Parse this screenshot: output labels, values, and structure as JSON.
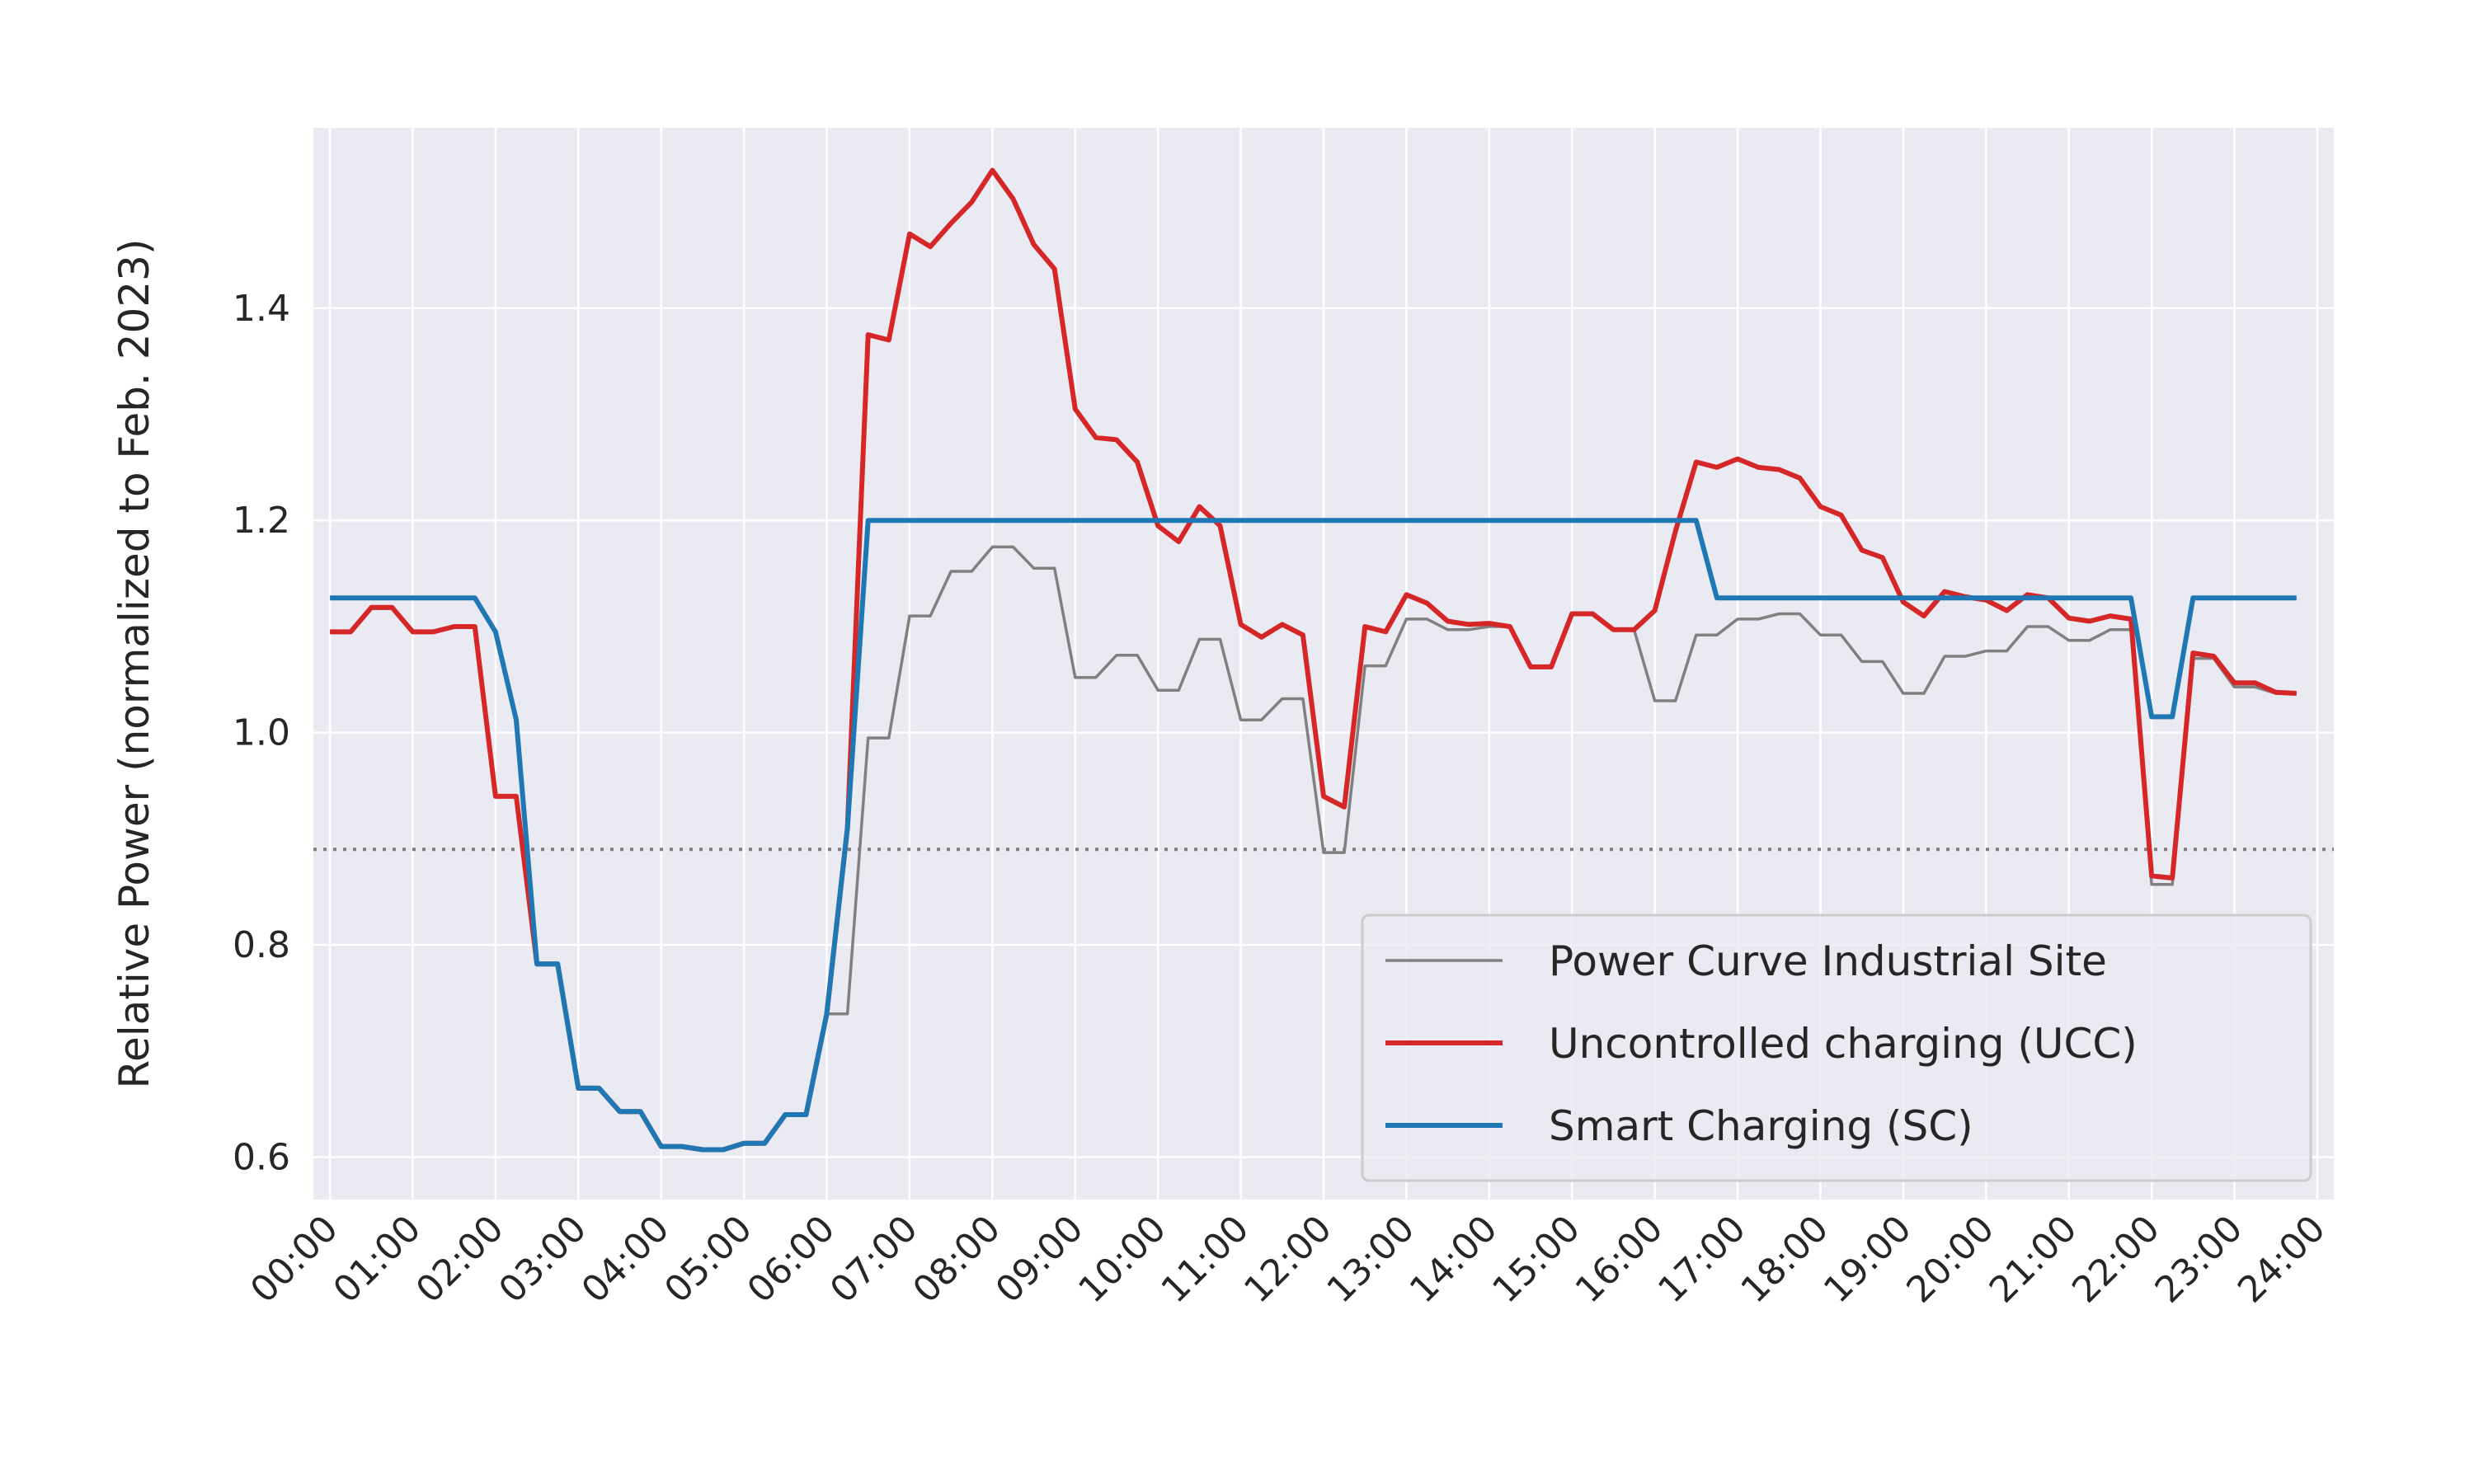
{
  "chart_data": {
    "type": "line",
    "xlabel": "",
    "ylabel": "Relative Power (normalized to Feb. 2023)",
    "x_ticks": [
      "00:00",
      "01:00",
      "02:00",
      "03:00",
      "04:00",
      "05:00",
      "06:00",
      "07:00",
      "08:00",
      "09:00",
      "10:00",
      "11:00",
      "12:00",
      "13:00",
      "14:00",
      "15:00",
      "16:00",
      "17:00",
      "18:00",
      "19:00",
      "20:00",
      "21:00",
      "22:00",
      "23:00",
      "24:00"
    ],
    "y_ticks": [
      "0.6",
      "0.8",
      "1.0",
      "1.2",
      "1.4"
    ],
    "xlim": [
      -0.2,
      24.2
    ],
    "ylim": [
      0.56,
      1.57
    ],
    "grid": true,
    "legend_position": "bottom-right",
    "reference_line": {
      "y": 0.89,
      "style": "dotted",
      "color": "#808080"
    },
    "series": [
      {
        "name": "Power Curve Industrial Site",
        "color": "#808080",
        "points": [
          [
            0,
            1.095
          ],
          [
            0.25,
            1.095
          ],
          [
            0.5,
            1.117
          ],
          [
            0.75,
            1.117
          ],
          [
            1,
            1.095
          ],
          [
            1.25,
            1.095
          ],
          [
            1.5,
            1.1
          ],
          [
            1.75,
            1.1
          ],
          [
            2,
            0.94
          ],
          [
            2.25,
            0.94
          ],
          [
            2.5,
            0.782
          ],
          [
            2.75,
            0.782
          ],
          [
            3,
            0.665
          ],
          [
            3.25,
            0.665
          ],
          [
            3.5,
            0.643
          ],
          [
            3.75,
            0.643
          ],
          [
            4,
            0.61
          ],
          [
            4.25,
            0.61
          ],
          [
            4.5,
            0.607
          ],
          [
            4.75,
            0.607
          ],
          [
            5,
            0.613
          ],
          [
            5.25,
            0.613
          ],
          [
            5.5,
            0.64
          ],
          [
            5.75,
            0.64
          ],
          [
            6,
            0.735
          ],
          [
            6.25,
            0.735
          ],
          [
            6.5,
            0.995
          ],
          [
            6.75,
            0.995
          ],
          [
            7,
            1.11
          ],
          [
            7.25,
            1.11
          ],
          [
            7.5,
            1.152
          ],
          [
            7.75,
            1.152
          ],
          [
            8,
            1.175
          ],
          [
            8.25,
            1.175
          ],
          [
            8.5,
            1.155
          ],
          [
            8.75,
            1.155
          ],
          [
            9,
            1.052
          ],
          [
            9.25,
            1.052
          ],
          [
            9.5,
            1.073
          ],
          [
            9.75,
            1.073
          ],
          [
            10,
            1.04
          ],
          [
            10.25,
            1.04
          ],
          [
            10.5,
            1.088
          ],
          [
            10.75,
            1.088
          ],
          [
            11,
            1.012
          ],
          [
            11.25,
            1.012
          ],
          [
            11.5,
            1.032
          ],
          [
            11.75,
            1.032
          ],
          [
            12,
            0.887
          ],
          [
            12.25,
            0.887
          ],
          [
            12.5,
            1.063
          ],
          [
            12.75,
            1.063
          ],
          [
            13,
            1.107
          ],
          [
            13.25,
            1.107
          ],
          [
            13.5,
            1.097
          ],
          [
            13.75,
            1.097
          ],
          [
            14,
            1.1
          ],
          [
            14.25,
            1.1
          ],
          [
            14.5,
            1.062
          ],
          [
            14.75,
            1.062
          ],
          [
            15,
            1.112
          ],
          [
            15.25,
            1.112
          ],
          [
            15.5,
            1.097
          ],
          [
            15.75,
            1.097
          ],
          [
            16,
            1.03
          ],
          [
            16.25,
            1.03
          ],
          [
            16.5,
            1.092
          ],
          [
            16.75,
            1.092
          ],
          [
            17,
            1.107
          ],
          [
            17.25,
            1.107
          ],
          [
            17.5,
            1.112
          ],
          [
            17.75,
            1.112
          ],
          [
            18,
            1.092
          ],
          [
            18.25,
            1.092
          ],
          [
            18.5,
            1.067
          ],
          [
            18.75,
            1.067
          ],
          [
            19,
            1.037
          ],
          [
            19.25,
            1.037
          ],
          [
            19.5,
            1.072
          ],
          [
            19.75,
            1.072
          ],
          [
            20,
            1.077
          ],
          [
            20.25,
            1.077
          ],
          [
            20.5,
            1.1
          ],
          [
            20.75,
            1.1
          ],
          [
            21,
            1.087
          ],
          [
            21.25,
            1.087
          ],
          [
            21.5,
            1.097
          ],
          [
            21.75,
            1.097
          ],
          [
            22,
            0.857
          ],
          [
            22.25,
            0.857
          ],
          [
            22.5,
            1.07
          ],
          [
            22.75,
            1.07
          ],
          [
            23,
            1.043
          ],
          [
            23.25,
            1.043
          ],
          [
            23.5,
            1.037
          ],
          [
            23.75,
            1.037
          ]
        ]
      },
      {
        "name": "Uncontrolled charging (UCC)",
        "color": "#d62728",
        "points": [
          [
            0,
            1.095
          ],
          [
            0.25,
            1.095
          ],
          [
            0.5,
            1.118
          ],
          [
            0.75,
            1.118
          ],
          [
            1,
            1.095
          ],
          [
            1.25,
            1.095
          ],
          [
            1.5,
            1.1
          ],
          [
            1.75,
            1.1
          ],
          [
            2,
            0.94
          ],
          [
            2.25,
            0.94
          ],
          [
            2.5,
            0.782
          ],
          [
            2.75,
            0.782
          ],
          [
            3,
            0.665
          ],
          [
            3.25,
            0.665
          ],
          [
            3.5,
            0.643
          ],
          [
            3.75,
            0.643
          ],
          [
            4,
            0.61
          ],
          [
            4.25,
            0.61
          ],
          [
            4.5,
            0.607
          ],
          [
            4.75,
            0.607
          ],
          [
            5,
            0.613
          ],
          [
            5.25,
            0.613
          ],
          [
            5.5,
            0.64
          ],
          [
            5.75,
            0.64
          ],
          [
            6,
            0.735
          ],
          [
            6.25,
            0.91
          ],
          [
            6.5,
            1.375
          ],
          [
            6.75,
            1.37
          ],
          [
            7,
            1.47
          ],
          [
            7.25,
            1.458
          ],
          [
            7.5,
            1.48
          ],
          [
            7.75,
            1.5
          ],
          [
            8,
            1.53
          ],
          [
            8.25,
            1.503
          ],
          [
            8.5,
            1.46
          ],
          [
            8.75,
            1.437
          ],
          [
            9,
            1.305
          ],
          [
            9.25,
            1.278
          ],
          [
            9.5,
            1.276
          ],
          [
            9.75,
            1.255
          ],
          [
            10,
            1.195
          ],
          [
            10.25,
            1.18
          ],
          [
            10.5,
            1.213
          ],
          [
            10.75,
            1.195
          ],
          [
            11,
            1.102
          ],
          [
            11.25,
            1.09
          ],
          [
            11.5,
            1.102
          ],
          [
            11.75,
            1.092
          ],
          [
            12,
            0.94
          ],
          [
            12.25,
            0.93
          ],
          [
            12.5,
            1.1
          ],
          [
            12.75,
            1.095
          ],
          [
            13,
            1.13
          ],
          [
            13.25,
            1.122
          ],
          [
            13.5,
            1.105
          ],
          [
            13.75,
            1.102
          ],
          [
            14,
            1.103
          ],
          [
            14.25,
            1.1
          ],
          [
            14.5,
            1.062
          ],
          [
            14.75,
            1.062
          ],
          [
            15,
            1.112
          ],
          [
            15.25,
            1.112
          ],
          [
            15.5,
            1.097
          ],
          [
            15.75,
            1.097
          ],
          [
            16,
            1.115
          ],
          [
            16.25,
            1.19
          ],
          [
            16.5,
            1.255
          ],
          [
            16.75,
            1.25
          ],
          [
            17,
            1.258
          ],
          [
            17.25,
            1.25
          ],
          [
            17.5,
            1.248
          ],
          [
            17.75,
            1.24
          ],
          [
            18,
            1.213
          ],
          [
            18.25,
            1.205
          ],
          [
            18.5,
            1.172
          ],
          [
            18.75,
            1.165
          ],
          [
            19,
            1.123
          ],
          [
            19.25,
            1.11
          ],
          [
            19.5,
            1.133
          ],
          [
            19.75,
            1.128
          ],
          [
            20,
            1.125
          ],
          [
            20.25,
            1.115
          ],
          [
            20.5,
            1.13
          ],
          [
            20.75,
            1.127
          ],
          [
            21,
            1.108
          ],
          [
            21.25,
            1.105
          ],
          [
            21.5,
            1.11
          ],
          [
            21.75,
            1.107
          ],
          [
            22,
            0.865
          ],
          [
            22.25,
            0.863
          ],
          [
            22.5,
            1.075
          ],
          [
            22.75,
            1.072
          ],
          [
            23,
            1.047
          ],
          [
            23.25,
            1.047
          ],
          [
            23.5,
            1.038
          ],
          [
            23.75,
            1.037
          ]
        ]
      },
      {
        "name": "Smart Charging (SC)",
        "color": "#1f77b4",
        "points": [
          [
            0,
            1.127
          ],
          [
            0.25,
            1.127
          ],
          [
            0.5,
            1.127
          ],
          [
            0.75,
            1.127
          ],
          [
            1,
            1.127
          ],
          [
            1.25,
            1.127
          ],
          [
            1.5,
            1.127
          ],
          [
            1.75,
            1.127
          ],
          [
            2,
            1.095
          ],
          [
            2.25,
            1.012
          ],
          [
            2.5,
            0.782
          ],
          [
            2.75,
            0.782
          ],
          [
            3,
            0.665
          ],
          [
            3.25,
            0.665
          ],
          [
            3.5,
            0.643
          ],
          [
            3.75,
            0.643
          ],
          [
            4,
            0.61
          ],
          [
            4.25,
            0.61
          ],
          [
            4.5,
            0.607
          ],
          [
            4.75,
            0.607
          ],
          [
            5,
            0.613
          ],
          [
            5.25,
            0.613
          ],
          [
            5.5,
            0.64
          ],
          [
            5.75,
            0.64
          ],
          [
            6,
            0.735
          ],
          [
            6.25,
            0.91
          ],
          [
            6.5,
            1.2
          ],
          [
            8,
            1.2
          ],
          [
            10,
            1.2
          ],
          [
            12,
            1.2
          ],
          [
            14,
            1.2
          ],
          [
            16,
            1.2
          ],
          [
            16.5,
            1.2
          ],
          [
            16.75,
            1.127
          ],
          [
            18,
            1.127
          ],
          [
            20,
            1.127
          ],
          [
            21.75,
            1.127
          ],
          [
            22,
            1.015
          ],
          [
            22.25,
            1.015
          ],
          [
            22.5,
            1.127
          ],
          [
            23,
            1.127
          ],
          [
            23.75,
            1.127
          ]
        ]
      }
    ]
  }
}
